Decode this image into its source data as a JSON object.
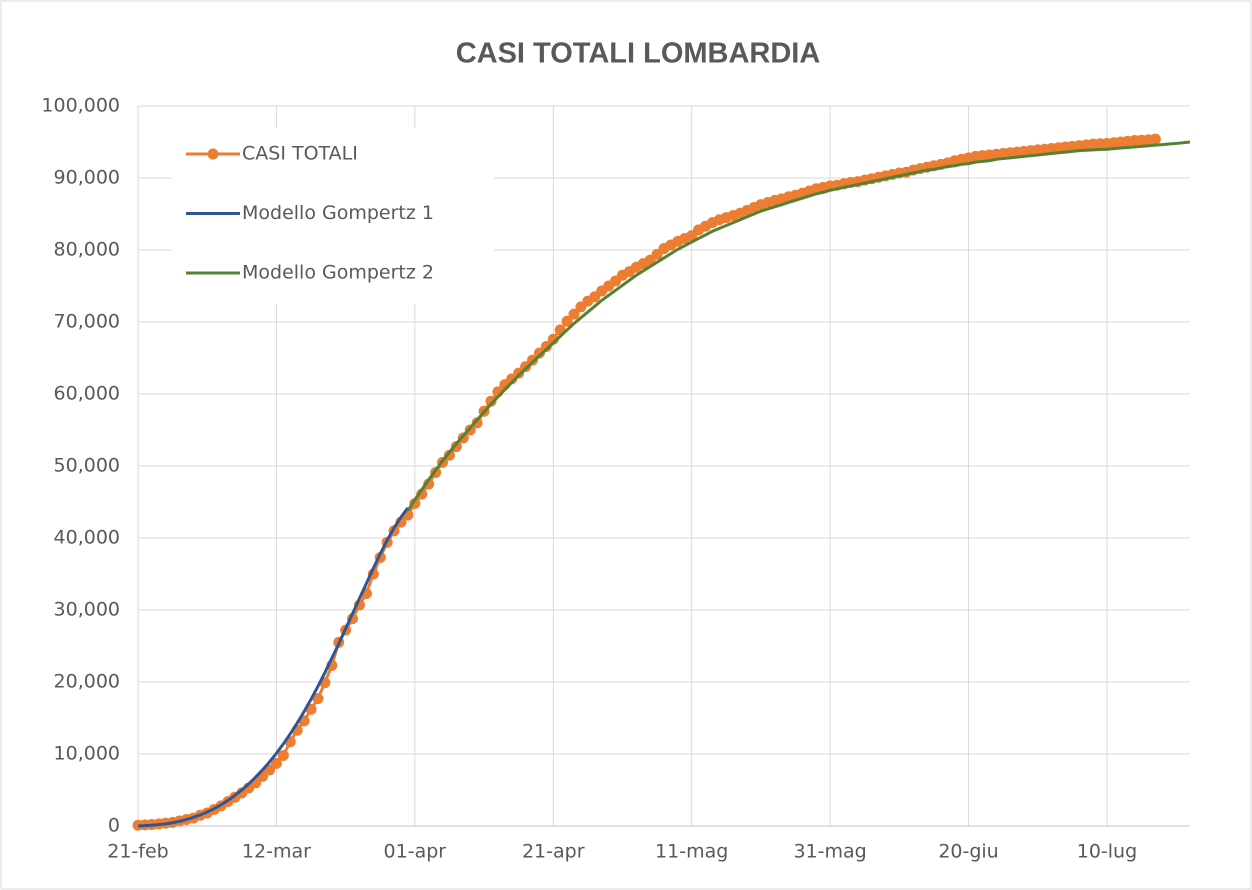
{
  "chart_data": {
    "type": "line",
    "title": "CASI TOTALI LOMBARDIA",
    "x": [
      "21-feb",
      "22-feb",
      "23-feb",
      "24-feb",
      "25-feb",
      "26-feb",
      "27-feb",
      "28-feb",
      "29-feb",
      "01-mar",
      "02-mar",
      "03-mar",
      "04-mar",
      "05-mar",
      "06-mar",
      "07-mar",
      "08-mar",
      "09-mar",
      "10-mar",
      "11-mar",
      "12-mar",
      "13-mar",
      "14-mar",
      "15-mar",
      "16-mar",
      "17-mar",
      "18-mar",
      "19-mar",
      "20-mar",
      "21-mar",
      "22-mar",
      "23-mar",
      "24-mar",
      "25-mar",
      "26-mar",
      "27-mar",
      "28-mar",
      "29-mar",
      "30-mar",
      "31-mar",
      "01-apr",
      "02-apr",
      "03-apr",
      "04-apr",
      "05-apr",
      "06-apr",
      "07-apr",
      "08-apr",
      "09-apr",
      "10-apr",
      "11-apr",
      "12-apr",
      "13-apr",
      "14-apr",
      "15-apr",
      "16-apr",
      "17-apr",
      "18-apr",
      "19-apr",
      "20-apr",
      "21-apr",
      "22-apr",
      "23-apr",
      "24-apr",
      "25-apr",
      "26-apr",
      "27-apr",
      "28-apr",
      "29-apr",
      "30-apr",
      "01-mag",
      "02-mag",
      "03-mag",
      "04-mag",
      "05-mag",
      "06-mag",
      "07-mag",
      "08-mag",
      "09-mag",
      "10-mag",
      "11-mag",
      "12-mag",
      "13-mag",
      "14-mag",
      "15-mag",
      "16-mag",
      "17-mag",
      "18-mag",
      "19-mag",
      "20-mag",
      "21-mag",
      "22-mag",
      "23-mag",
      "24-mag",
      "25-mag",
      "26-mag",
      "27-mag",
      "28-mag",
      "29-mag",
      "30-mag",
      "31-mag",
      "01-giu",
      "02-giu",
      "03-giu",
      "04-giu",
      "05-giu",
      "06-giu",
      "07-giu",
      "08-giu",
      "09-giu",
      "10-giu",
      "11-giu",
      "12-giu",
      "13-giu",
      "14-giu",
      "15-giu",
      "16-giu",
      "17-giu",
      "18-giu",
      "19-giu",
      "20-giu",
      "21-giu",
      "22-giu",
      "23-giu",
      "24-giu",
      "25-giu",
      "26-giu",
      "27-giu",
      "28-giu",
      "29-giu",
      "30-giu",
      "01-lug",
      "02-lug",
      "03-lug",
      "04-lug",
      "05-lug",
      "06-lug",
      "07-lug",
      "08-lug",
      "09-lug",
      "10-lug",
      "11-lug",
      "12-lug",
      "13-lug",
      "14-lug",
      "15-lug",
      "16-lug",
      "17-lug",
      "18-lug",
      "19-lug",
      "20-lug",
      "21-lug",
      "22-lug"
    ],
    "xticks": [
      "21-feb",
      "12-mar",
      "01-apr",
      "21-apr",
      "11-mag",
      "31-mag",
      "20-giu",
      "10-lug"
    ],
    "series": [
      {
        "name": "CASI TOTALI",
        "color": "#ED7D31",
        "marker": true,
        "values": [
          100,
          150,
          200,
          300,
          400,
          500,
          700,
          900,
          1100,
          1500,
          1800,
          2300,
          2800,
          3400,
          4000,
          4600,
          5300,
          6000,
          6900,
          7800,
          8700,
          9800,
          11700,
          13300,
          14600,
          16200,
          17700,
          19900,
          22300,
          25500,
          27200,
          28800,
          30700,
          32300,
          35000,
          37300,
          39400,
          41000,
          42200,
          43200,
          44800,
          46100,
          47500,
          49100,
          50500,
          51500,
          52700,
          53900,
          55000,
          56000,
          57600,
          59000,
          60300,
          61300,
          62100,
          62900,
          63800,
          64700,
          65700,
          66600,
          67600,
          68900,
          70100,
          71100,
          72100,
          72900,
          73500,
          74300,
          75000,
          75700,
          76500,
          77000,
          77600,
          78100,
          78600,
          79400,
          80200,
          80700,
          81200,
          81600,
          82000,
          82800,
          83300,
          83800,
          84200,
          84500,
          84800,
          85100,
          85500,
          85900,
          86300,
          86600,
          86900,
          87100,
          87400,
          87600,
          87900,
          88200,
          88500,
          88700,
          88900,
          89000,
          89200,
          89400,
          89500,
          89700,
          89900,
          90100,
          90300,
          90500,
          90700,
          90800,
          91100,
          91300,
          91500,
          91700,
          91900,
          92100,
          92400,
          92600,
          92800,
          93000,
          93100,
          93200,
          93300,
          93400,
          93500,
          93600,
          93700,
          93800,
          93900,
          94000,
          94100,
          94200,
          94300,
          94400,
          94500,
          94600,
          94700,
          94750,
          94800,
          94900,
          95000,
          95100,
          95200,
          95250,
          95300,
          95400,
          null,
          null,
          null,
          null,
          null
        ]
      },
      {
        "name": "Modello Gompertz 1",
        "color": "#2F5597",
        "marker": false,
        "values": [
          0,
          50,
          100,
          200,
          300,
          450,
          650,
          900,
          1200,
          1550,
          1950,
          2400,
          2950,
          3550,
          4250,
          5000,
          5850,
          6800,
          7800,
          8900,
          10100,
          11400,
          12800,
          14300,
          15900,
          17600,
          19400,
          21300,
          23300,
          25300,
          27400,
          29500,
          31600,
          33700,
          35800,
          37800,
          39700,
          41400,
          42900,
          44200,
          null,
          null,
          null,
          null,
          null,
          null,
          null,
          null,
          null,
          null,
          null,
          null,
          null,
          null,
          null,
          null,
          null,
          null,
          null,
          null,
          null,
          null,
          null,
          null,
          null,
          null,
          null,
          null,
          null,
          null,
          null,
          null,
          null,
          null,
          null,
          null,
          null,
          null,
          null,
          null,
          null,
          null,
          null,
          null,
          null,
          null,
          null,
          null,
          null,
          null,
          null,
          null,
          null,
          null,
          null,
          null,
          null,
          null,
          null,
          null,
          null,
          null,
          null,
          null,
          null,
          null,
          null,
          null,
          null,
          null,
          null,
          null,
          null,
          null,
          null,
          null,
          null,
          null,
          null,
          null,
          null,
          null,
          null,
          null,
          null,
          null,
          null,
          null,
          null,
          null,
          null,
          null,
          null,
          null,
          null,
          null,
          null,
          null,
          null,
          null,
          null,
          null,
          null,
          null,
          null,
          null,
          null,
          null,
          null,
          null,
          null,
          null,
          null
        ]
      },
      {
        "name": "Modello Gompertz 2",
        "color": "#548235",
        "marker": false,
        "values": [
          null,
          null,
          null,
          null,
          null,
          null,
          null,
          null,
          null,
          null,
          null,
          null,
          null,
          null,
          null,
          null,
          null,
          null,
          null,
          null,
          null,
          null,
          null,
          null,
          null,
          null,
          null,
          null,
          null,
          null,
          null,
          null,
          null,
          null,
          null,
          null,
          null,
          null,
          null,
          43800,
          45300,
          46700,
          48100,
          49400,
          50700,
          51900,
          53100,
          54200,
          55300,
          56400,
          57500,
          58600,
          59600,
          60600,
          61600,
          62600,
          63500,
          64400,
          65300,
          66200,
          67100,
          68000,
          68900,
          69800,
          70600,
          71400,
          72200,
          73000,
          73700,
          74400,
          75100,
          75800,
          76500,
          77100,
          77700,
          78300,
          78900,
          79500,
          80100,
          80600,
          81100,
          81600,
          82100,
          82600,
          83000,
          83400,
          83800,
          84200,
          84600,
          85000,
          85400,
          85700,
          86000,
          86300,
          86600,
          86900,
          87200,
          87500,
          87800,
          88000,
          88300,
          88500,
          88700,
          88900,
          89100,
          89300,
          89500,
          89700,
          89900,
          90100,
          90300,
          90500,
          90700,
          90900,
          91100,
          91200,
          91400,
          91600,
          91700,
          91900,
          92000,
          92200,
          92300,
          92400,
          92600,
          92700,
          92800,
          92900,
          93000,
          93100,
          93200,
          93300,
          93400,
          93500,
          93600,
          93700,
          93800,
          93850,
          93900,
          93950,
          94000,
          94080,
          94160,
          94240,
          94320,
          94400,
          94480,
          94560,
          94640,
          94720,
          94800,
          94900,
          95000
        ]
      }
    ],
    "ylim": [
      0,
      100000
    ],
    "yticks": [
      0,
      {
        "value": 10000,
        "label": "10,000"
      },
      {
        "value": 20000,
        "label": "20,000"
      },
      {
        "value": 30000,
        "label": "30,000"
      },
      {
        "value": 40000,
        "label": "40,000"
      },
      {
        "value": 50000,
        "label": "50,000"
      },
      {
        "value": 60000,
        "label": "60,000"
      },
      {
        "value": 70000,
        "label": "70,000"
      },
      {
        "value": 80000,
        "label": "80,000"
      },
      {
        "value": 90000,
        "label": "90,000"
      },
      {
        "value": 100000,
        "label": "100,000"
      }
    ],
    "grid": true,
    "legend": "top-left"
  }
}
